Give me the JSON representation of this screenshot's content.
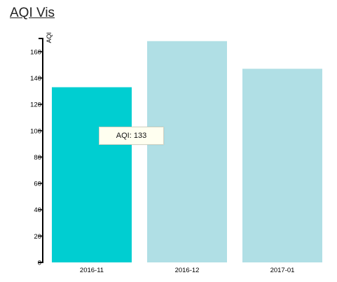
{
  "app": {
    "title": "AQI Vis"
  },
  "tooltip": {
    "text": "AQI: 133"
  },
  "colors": {
    "highlight": "#00ced1",
    "bar": "#b0dfe5",
    "axis": "#000000"
  },
  "chart_data": {
    "type": "bar",
    "title": "",
    "xlabel": "",
    "ylabel": "AQI",
    "categories": [
      "2016-11",
      "2016-12",
      "2017-01"
    ],
    "values": [
      133,
      168,
      147
    ],
    "highlighted_index": 0,
    "ylim": [
      0,
      170
    ],
    "yticks": [
      0,
      20,
      40,
      60,
      80,
      100,
      120,
      140,
      160
    ],
    "grid": false,
    "legend": "none"
  }
}
